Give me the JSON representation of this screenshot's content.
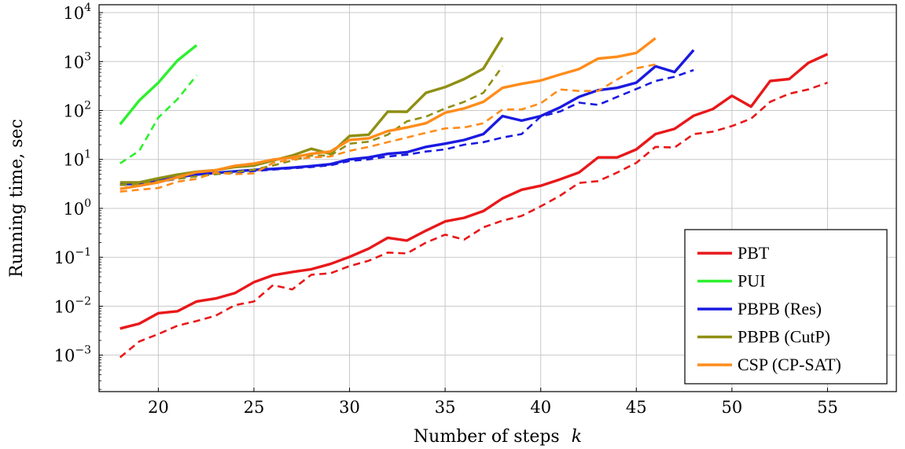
{
  "chart_data": {
    "type": "line",
    "xlabel": "Number of steps",
    "xlabel_var": "k",
    "ylabel": "Running time, sec",
    "xlim": [
      16.9,
      58.6
    ],
    "x_ticks": [
      20,
      25,
      30,
      35,
      40,
      45,
      50,
      55
    ],
    "y_scale": "log",
    "ylim": [
      0.00018,
      14500
    ],
    "y_tick_exponents": [
      -3,
      -2,
      -1,
      0,
      1,
      2,
      3,
      4
    ],
    "y_tick_base": "10",
    "grid": true,
    "legend_position": "bottom-right",
    "line_styles": "solid and dashed lines are drawn per method; the legend shows only the solid style",
    "series": [
      {
        "name": "PBT",
        "color": "#e8181a",
        "style": "solid",
        "x": [
          18,
          19,
          20,
          21,
          22,
          23,
          24,
          25,
          26,
          27,
          28,
          29,
          30,
          31,
          32,
          33,
          34,
          35,
          36,
          37,
          38,
          39,
          40,
          41,
          42,
          43,
          44,
          45,
          46,
          47,
          48,
          49,
          50,
          51,
          52,
          53,
          54,
          55
        ],
        "y": [
          0.0035,
          0.0044,
          0.0072,
          0.0079,
          0.0125,
          0.0144,
          0.0185,
          0.031,
          0.043,
          0.05,
          0.057,
          0.073,
          0.102,
          0.15,
          0.25,
          0.22,
          0.35,
          0.54,
          0.64,
          0.88,
          1.6,
          2.4,
          2.9,
          3.9,
          5.4,
          11,
          11,
          16,
          33,
          42,
          78,
          107,
          200,
          120,
          400,
          440,
          940,
          1420
        ]
      },
      {
        "name": "",
        "color": "#e8181a",
        "style": "dashed",
        "x": [
          18,
          19,
          20,
          21,
          22,
          23,
          24,
          25,
          26,
          27,
          28,
          29,
          30,
          31,
          32,
          33,
          34,
          35,
          36,
          37,
          38,
          39,
          40,
          41,
          42,
          43,
          44,
          45,
          46,
          47,
          48,
          49,
          50,
          51,
          52,
          53,
          54,
          55
        ],
        "y": [
          0.0009,
          0.0019,
          0.0027,
          0.004,
          0.005,
          0.0064,
          0.0105,
          0.0125,
          0.027,
          0.022,
          0.044,
          0.047,
          0.066,
          0.085,
          0.125,
          0.12,
          0.2,
          0.29,
          0.23,
          0.41,
          0.56,
          0.7,
          1.1,
          1.8,
          3.3,
          3.6,
          5.4,
          8.5,
          18,
          17.5,
          33,
          37,
          48,
          68,
          150,
          220,
          270,
          370
        ]
      },
      {
        "name": "PUI",
        "color": "#2ef02e",
        "style": "solid",
        "x": [
          18,
          19,
          20,
          21,
          22
        ],
        "y": [
          52,
          160,
          370,
          1050,
          2150
        ]
      },
      {
        "name": "",
        "color": "#2ef02e",
        "style": "dashed",
        "x": [
          18,
          19,
          20,
          21,
          22
        ],
        "y": [
          8.3,
          15,
          72,
          170,
          520
        ]
      },
      {
        "name": "PBPB (Res)",
        "color": "#1a1ae0",
        "style": "solid",
        "x": [
          18,
          19,
          20,
          21,
          22,
          23,
          24,
          25,
          26,
          27,
          28,
          29,
          30,
          31,
          32,
          33,
          34,
          35,
          36,
          37,
          38,
          39,
          40,
          41,
          42,
          43,
          44,
          45,
          46,
          47,
          48
        ],
        "y": [
          3.1,
          3.2,
          3.8,
          4.3,
          4.9,
          5.3,
          5.7,
          6.1,
          6.4,
          6.8,
          7.3,
          8,
          10,
          11,
          13,
          14,
          18,
          21,
          25,
          33,
          77,
          62,
          77,
          115,
          190,
          260,
          290,
          370,
          800,
          610,
          1720
        ]
      },
      {
        "name": "",
        "color": "#1a1ae0",
        "style": "dashed",
        "x": [
          18,
          19,
          20,
          21,
          22,
          23,
          24,
          25,
          26,
          27,
          28,
          29,
          30,
          31,
          32,
          33,
          34,
          35,
          36,
          37,
          38,
          39,
          40,
          41,
          42,
          43,
          44,
          45,
          46,
          47,
          48
        ],
        "y": [
          3.0,
          3.1,
          3.5,
          4.0,
          4.6,
          5.0,
          5.4,
          5.8,
          6.2,
          6.6,
          7.0,
          7.6,
          9.3,
          10,
          11.5,
          12.5,
          14.5,
          16,
          20,
          22.5,
          28,
          33,
          75,
          95,
          145,
          130,
          190,
          275,
          400,
          490,
          670
        ]
      },
      {
        "name": "PBPB (CutP)",
        "color": "#8f8f14",
        "style": "solid",
        "x": [
          18,
          19,
          20,
          21,
          22,
          23,
          24,
          25,
          26,
          27,
          28,
          29,
          30,
          31,
          32,
          33,
          34,
          35,
          36,
          37,
          38
        ],
        "y": [
          3.4,
          3.4,
          4.1,
          4.9,
          5.6,
          6.0,
          7.0,
          7.5,
          9.5,
          12,
          16.5,
          13,
          30,
          32,
          95,
          94,
          230,
          300,
          440,
          720,
          3100
        ]
      },
      {
        "name": "",
        "color": "#8f8f14",
        "style": "dashed",
        "x": [
          18,
          19,
          20,
          21,
          22,
          23,
          24,
          25,
          26,
          27,
          28,
          29,
          30,
          31,
          32,
          33,
          34,
          35,
          36,
          37,
          38
        ],
        "y": [
          3.0,
          3.1,
          3.6,
          4.0,
          4.5,
          5.0,
          5.5,
          6.2,
          7.5,
          9.5,
          12,
          12,
          21,
          23,
          32,
          60,
          75,
          110,
          150,
          230,
          800
        ]
      },
      {
        "name": "CSP (CP-SAT)",
        "color": "#ff8c1a",
        "style": "solid",
        "x": [
          18,
          19,
          20,
          21,
          22,
          23,
          24,
          25,
          26,
          27,
          28,
          29,
          30,
          31,
          32,
          33,
          34,
          35,
          36,
          37,
          38,
          39,
          40,
          41,
          42,
          43,
          44,
          45,
          46
        ],
        "y": [
          2.5,
          2.9,
          3.4,
          4.3,
          5.5,
          6.0,
          7.4,
          8.2,
          9.9,
          11,
          13,
          14.5,
          25,
          27,
          38,
          45,
          55,
          90,
          110,
          150,
          290,
          350,
          410,
          540,
          700,
          1150,
          1250,
          1500,
          3000
        ]
      },
      {
        "name": "",
        "color": "#ff8c1a",
        "style": "dashed",
        "x": [
          18,
          19,
          20,
          21,
          22,
          23,
          24,
          25,
          26,
          27,
          28,
          29,
          30,
          31,
          32,
          33,
          34,
          35,
          36,
          37,
          38,
          39,
          40,
          41,
          42,
          43,
          44,
          45,
          46
        ],
        "y": [
          2.2,
          2.4,
          2.6,
          3.5,
          4.0,
          5.4,
          5.0,
          5.2,
          8.5,
          10,
          11,
          11.5,
          15,
          18,
          22.5,
          28,
          35,
          43,
          45,
          55,
          105,
          105,
          140,
          270,
          250,
          250,
          430,
          730,
          870
        ]
      }
    ]
  }
}
